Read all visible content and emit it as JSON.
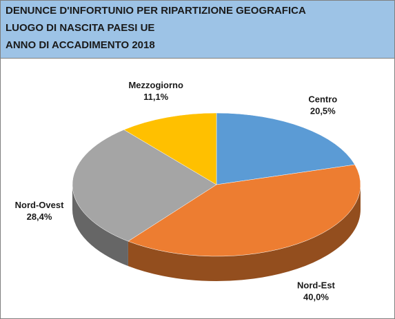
{
  "chart_data": {
    "type": "pie",
    "title": [
      "DENUNCE D'INFORTUNIO PER RIPARTIZIONE GEOGRAFICA",
      "LUOGO DI NASCITA PAESI UE",
      "ANNO DI ACCADIMENTO 2018"
    ],
    "categories": [
      "Centro",
      "Nord-Est",
      "Nord-Ovest",
      "Mezzogiorno"
    ],
    "values": [
      20.5,
      40.0,
      28.4,
      11.1
    ],
    "value_labels": [
      "20,5%",
      "40,0%",
      "28,4%",
      "11,1%"
    ],
    "colors": [
      "#5b9bd5",
      "#ed7d31",
      "#a5a5a5",
      "#ffc000"
    ]
  }
}
